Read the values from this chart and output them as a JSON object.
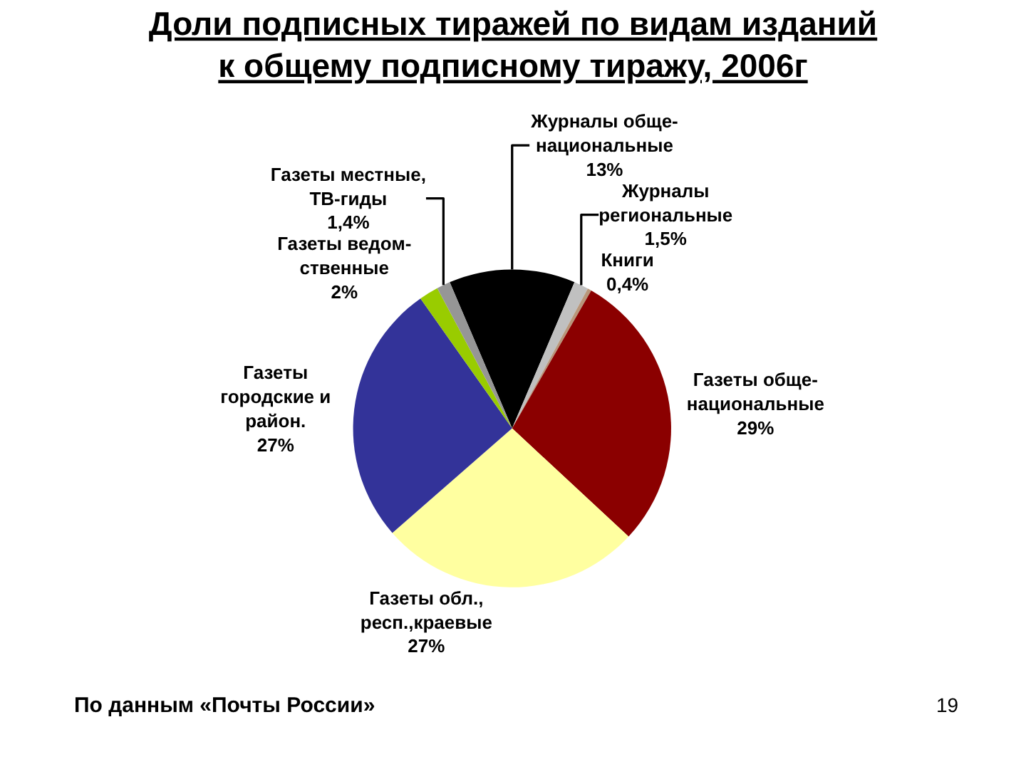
{
  "chart_data": {
    "type": "pie",
    "title": "Доли подписных тиражей по видам изданий\nк общему подписному тиражу, 2006г",
    "categories": [
      "Журналы обще-\nнациональные",
      "Журналы\nрегиональные",
      "Книги",
      "Газеты обще-\nнациональные",
      "Газеты обл.,\nресп.,краевые",
      "Газеты\nгородские и\nрайон.",
      "Газеты ведом-\nственные",
      "Газеты местные,\nТВ-гиды"
    ],
    "values": [
      13,
      1.5,
      0.4,
      29,
      27,
      27,
      2,
      1.4
    ],
    "value_labels": [
      "13%",
      "1,5%",
      "0,4%",
      "29%",
      "27%",
      "27%",
      "2%",
      "1,4%"
    ],
    "colors": [
      "#000000",
      "#c0c0c0",
      "#b8967a",
      "#8b0000",
      "#ffffa0",
      "#333399",
      "#99cc00",
      "#969696"
    ],
    "legend": false,
    "annotations": [
      "По данным «Почты России»",
      "19"
    ]
  }
}
